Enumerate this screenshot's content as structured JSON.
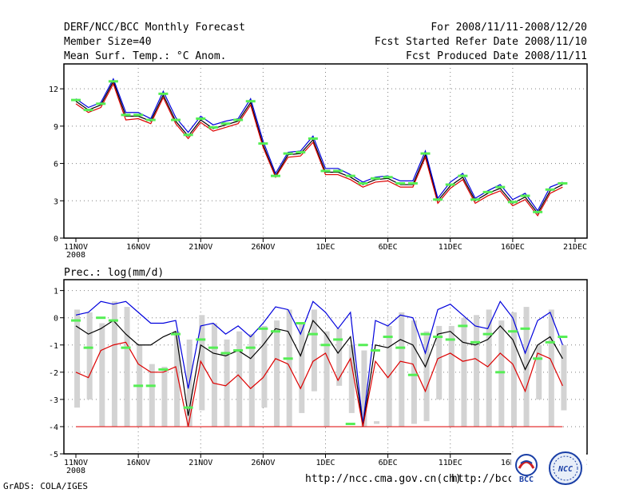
{
  "header": {
    "title": "DERF/NCC/BCC Monthly Forecast",
    "member_size": "Member Size=40",
    "variable": "Mean Surf. Temp.: °C Anom.",
    "forecast_period": "For 2008/11/11-2008/12/20",
    "started_date": "Fcst Started Refer Date 2008/11/10",
    "produced_date": "Fcst Produced Date 2008/11/11"
  },
  "footer": {
    "grads_credit": "GrADS: COLA/IGES",
    "url_ncc": "http://ncc.cma.gov.cn(ch)",
    "url_bcc": "http://bcc.c",
    "logo_bcc_text": "BCC",
    "logo_ncc_text": "NCC"
  },
  "colors": {
    "frame": "#000000",
    "grid": "#808080",
    "mean": "#000000",
    "upper": "#0000dd",
    "lower": "#dd0000",
    "obs_marker": "#55ee55",
    "spread_bar": "#d3d3d3"
  },
  "chart_data": [
    {
      "type": "line",
      "title": "Mean Surf. Temp.: °C Anom.",
      "ylabel": "",
      "ylim": [
        0,
        14
      ],
      "yticks": [
        0,
        3,
        6,
        9,
        12
      ],
      "xlim": [
        0,
        40
      ],
      "xticks": [
        {
          "day": 0,
          "label": "11NOV",
          "sub": "2008"
        },
        {
          "day": 5,
          "label": "16NOV"
        },
        {
          "day": 10,
          "label": "21NOV"
        },
        {
          "day": 15,
          "label": "26NOV"
        },
        {
          "day": 20,
          "label": "1DEC"
        },
        {
          "day": 25,
          "label": "6DEC"
        },
        {
          "day": 30,
          "label": "11DEC"
        },
        {
          "day": 35,
          "label": "16DEC"
        },
        {
          "day": 40,
          "label": "21DEC"
        }
      ],
      "grid": true,
      "series": [
        {
          "name": "ensemble-mean",
          "values": [
            11.0,
            10.3,
            10.7,
            12.6,
            9.8,
            9.8,
            9.4,
            11.5,
            9.4,
            8.2,
            9.5,
            8.8,
            9.1,
            9.4,
            10.9,
            7.5,
            5.0,
            6.7,
            6.8,
            7.9,
            5.3,
            5.3,
            4.9,
            4.3,
            4.7,
            4.8,
            4.3,
            4.3,
            6.7,
            3.0,
            4.2,
            4.9,
            3.0,
            3.6,
            4.0,
            2.8,
            3.3,
            2.0,
            3.8,
            4.3
          ]
        },
        {
          "name": "ensemble-upper",
          "values": [
            11.2,
            10.5,
            10.9,
            12.8,
            10.1,
            10.1,
            9.6,
            11.8,
            9.7,
            8.5,
            9.8,
            9.1,
            9.4,
            9.6,
            11.2,
            7.8,
            5.2,
            6.9,
            7.0,
            8.2,
            5.6,
            5.6,
            5.1,
            4.5,
            4.9,
            5.0,
            4.6,
            4.6,
            7.0,
            3.2,
            4.5,
            5.2,
            3.2,
            3.8,
            4.3,
            3.1,
            3.6,
            2.2,
            4.1,
            4.5
          ]
        },
        {
          "name": "ensemble-lower",
          "values": [
            10.8,
            10.1,
            10.5,
            12.4,
            9.5,
            9.6,
            9.2,
            11.3,
            9.2,
            8.0,
            9.3,
            8.6,
            8.9,
            9.2,
            10.7,
            7.3,
            4.9,
            6.5,
            6.6,
            7.7,
            5.1,
            5.1,
            4.7,
            4.1,
            4.5,
            4.6,
            4.1,
            4.1,
            6.5,
            2.8,
            4.0,
            4.7,
            2.8,
            3.4,
            3.8,
            2.6,
            3.1,
            1.8,
            3.6,
            4.1
          ]
        }
      ],
      "observed": [
        11.1,
        10.3,
        10.8,
        12.6,
        9.9,
        9.9,
        9.5,
        11.6,
        9.5,
        8.3,
        9.6,
        8.9,
        9.2,
        9.5,
        11.0,
        7.6,
        5.0,
        6.8,
        6.9,
        8.0,
        5.4,
        5.4,
        5.0,
        4.4,
        4.8,
        4.9,
        4.4,
        4.4,
        6.8,
        3.1,
        4.3,
        5.0,
        3.1,
        3.7,
        4.1,
        2.9,
        3.4,
        2.1,
        3.9,
        4.4
      ]
    },
    {
      "type": "line",
      "title": "Prec.: log(mm/d)",
      "ylabel": "",
      "ylim": [
        -5,
        1.4
      ],
      "yticks": [
        -5,
        -4,
        -3,
        -2,
        -1,
        0,
        1
      ],
      "xlim": [
        0,
        40
      ],
      "xticks": [
        {
          "day": 0,
          "label": "11NOV",
          "sub": "2008"
        },
        {
          "day": 5,
          "label": "16NOV"
        },
        {
          "day": 10,
          "label": "21NOV"
        },
        {
          "day": 15,
          "label": "26NOV"
        },
        {
          "day": 20,
          "label": "1DEC"
        },
        {
          "day": 25,
          "label": "6DEC"
        },
        {
          "day": 30,
          "label": "11DEC"
        },
        {
          "day": 35,
          "label": "16DEC"
        },
        {
          "day": 40,
          "label": "21DEC"
        }
      ],
      "grid": true,
      "spread_bars": [
        {
          "low": -3.3,
          "high": 0.3
        },
        {
          "low": -3.0,
          "high": 0.2
        },
        {
          "low": -4.0,
          "high": -0.2
        },
        {
          "low": -4.0,
          "high": 0.6
        },
        {
          "low": -4.0,
          "high": 0.4
        },
        {
          "low": -4.0,
          "high": -1.0
        },
        {
          "low": -4.0,
          "high": -1.7
        },
        {
          "low": -4.0,
          "high": -1.8
        },
        {
          "low": -4.0,
          "high": -0.5
        },
        {
          "low": -4.0,
          "high": -0.8
        },
        {
          "low": -3.4,
          "high": 0.1
        },
        {
          "low": -4.0,
          "high": -0.2
        },
        {
          "low": -4.0,
          "high": -0.8
        },
        {
          "low": -4.0,
          "high": -0.5
        },
        {
          "low": -4.0,
          "high": -0.6
        },
        {
          "low": -3.3,
          "high": -0.3
        },
        {
          "low": -4.0,
          "high": -0.1
        },
        {
          "low": -4.0,
          "high": 0.3
        },
        {
          "low": -3.5,
          "high": -0.2
        },
        {
          "low": -2.7,
          "high": 0.3
        },
        {
          "low": -4.0,
          "high": -0.5
        },
        {
          "low": -2.5,
          "high": -0.4
        },
        {
          "low": -3.5,
          "high": -1.0
        },
        {
          "low": -4.0,
          "high": -1.2
        },
        {
          "low": -3.9,
          "high": -3.8
        },
        {
          "low": -4.0,
          "high": -0.3
        },
        {
          "low": -4.0,
          "high": 0.2
        },
        {
          "low": -3.9,
          "high": -0.1
        },
        {
          "low": -3.8,
          "high": -0.5
        },
        {
          "low": -3.0,
          "high": -0.3
        },
        {
          "low": -4.0,
          "high": -0.3
        },
        {
          "low": -4.0,
          "high": 0.0
        },
        {
          "low": -4.0,
          "high": 0.1
        },
        {
          "low": -4.0,
          "high": 0.3
        },
        {
          "low": -4.0,
          "high": -0.1
        },
        {
          "low": -4.0,
          "high": 0.2
        },
        {
          "low": -4.0,
          "high": 0.4
        },
        {
          "low": -3.0,
          "high": -1.0
        },
        {
          "low": -4.0,
          "high": 0.3
        },
        {
          "low": -3.4,
          "high": -1.0
        }
      ],
      "series": [
        {
          "name": "ensemble-upper",
          "values": [
            0.1,
            0.2,
            0.6,
            0.5,
            0.6,
            0.2,
            -0.2,
            -0.2,
            -0.1,
            -2.6,
            -0.3,
            -0.2,
            -0.6,
            -0.3,
            -0.7,
            -0.2,
            0.4,
            0.3,
            -0.6,
            0.6,
            0.2,
            -0.4,
            0.2,
            -3.9,
            -0.1,
            -0.3,
            0.1,
            0.0,
            -1.3,
            0.3,
            0.5,
            0.1,
            -0.3,
            -0.4,
            0.6,
            0.0,
            -1.3,
            -0.1,
            0.2,
            -1.0
          ]
        },
        {
          "name": "ensemble-mean",
          "values": [
            -0.3,
            -0.6,
            -0.4,
            -0.1,
            -0.6,
            -1.0,
            -1.0,
            -0.7,
            -0.5,
            -3.6,
            -1.0,
            -1.3,
            -1.4,
            -1.2,
            -1.5,
            -1.0,
            -0.4,
            -0.5,
            -1.4,
            -0.1,
            -0.6,
            -1.3,
            -0.7,
            -4.0,
            -1.0,
            -1.1,
            -0.8,
            -1.0,
            -1.8,
            -0.6,
            -0.5,
            -0.9,
            -1.0,
            -0.8,
            -0.3,
            -0.8,
            -1.9,
            -1.0,
            -0.7,
            -1.5
          ]
        },
        {
          "name": "ensemble-lower",
          "values": [
            -2.0,
            -2.2,
            -1.2,
            -1.0,
            -0.9,
            -1.7,
            -2.0,
            -2.0,
            -1.8,
            -4.0,
            -1.6,
            -2.4,
            -2.5,
            -2.1,
            -2.6,
            -2.2,
            -1.5,
            -1.7,
            -2.6,
            -1.6,
            -1.3,
            -2.3,
            -1.5,
            -4.0,
            -1.6,
            -2.2,
            -1.6,
            -1.7,
            -2.7,
            -1.5,
            -1.3,
            -1.6,
            -1.5,
            -1.8,
            -1.3,
            -1.7,
            -2.7,
            -1.3,
            -1.5,
            -2.5
          ]
        }
      ],
      "observed": [
        -0.1,
        -1.1,
        0.0,
        -0.1,
        -1.1,
        -2.5,
        -2.5,
        -1.9,
        -0.6,
        -3.3,
        -0.8,
        -1.1,
        -1.3,
        -1.2,
        -1.1,
        -0.4,
        -0.5,
        -1.5,
        -0.2,
        -0.6,
        -1.0,
        -0.8,
        -3.9,
        -1.0,
        -1.2,
        -0.7,
        -1.1,
        -2.1,
        -0.6,
        -0.7,
        -0.8,
        -0.3,
        -0.9,
        -0.6,
        -2.0,
        -0.5,
        -0.4,
        -1.5,
        -0.9,
        -0.7
      ],
      "zero_precip_line": -4
    }
  ]
}
